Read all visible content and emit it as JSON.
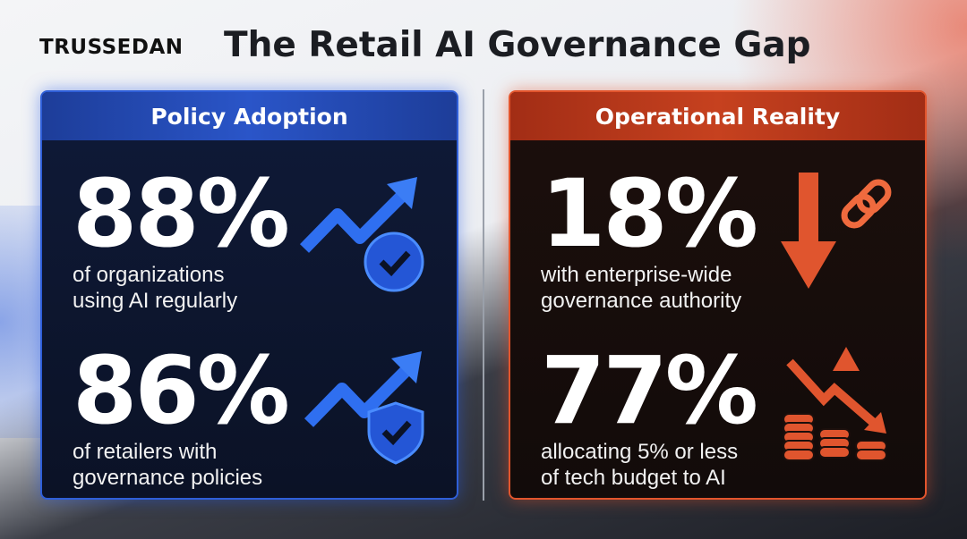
{
  "brand": {
    "logo": "TRUSSEDAN"
  },
  "title": "The Retail AI Governance Gap",
  "panels": {
    "left": {
      "heading": "Policy Adoption",
      "color": "#2a55c8",
      "stats": [
        {
          "value": "88%",
          "text1": "of organizations",
          "text2": "using AI regularly",
          "icon": "trend-up-badge-check-icon"
        },
        {
          "value": "86%",
          "text1": "of retailers with",
          "text2": "governance policies",
          "icon": "trend-up-shield-check-icon"
        }
      ]
    },
    "right": {
      "heading": "Operational Reality",
      "color": "#c6411f",
      "stats": [
        {
          "value": "18%",
          "text1": "with enterprise-wide",
          "text2": "governance authority",
          "icon": "arrow-down-broken-link-icon"
        },
        {
          "value": "77%",
          "text1": "allocating 5% or less",
          "text2": "of tech budget to AI",
          "icon": "trend-down-coins-warning-icon"
        }
      ]
    }
  }
}
